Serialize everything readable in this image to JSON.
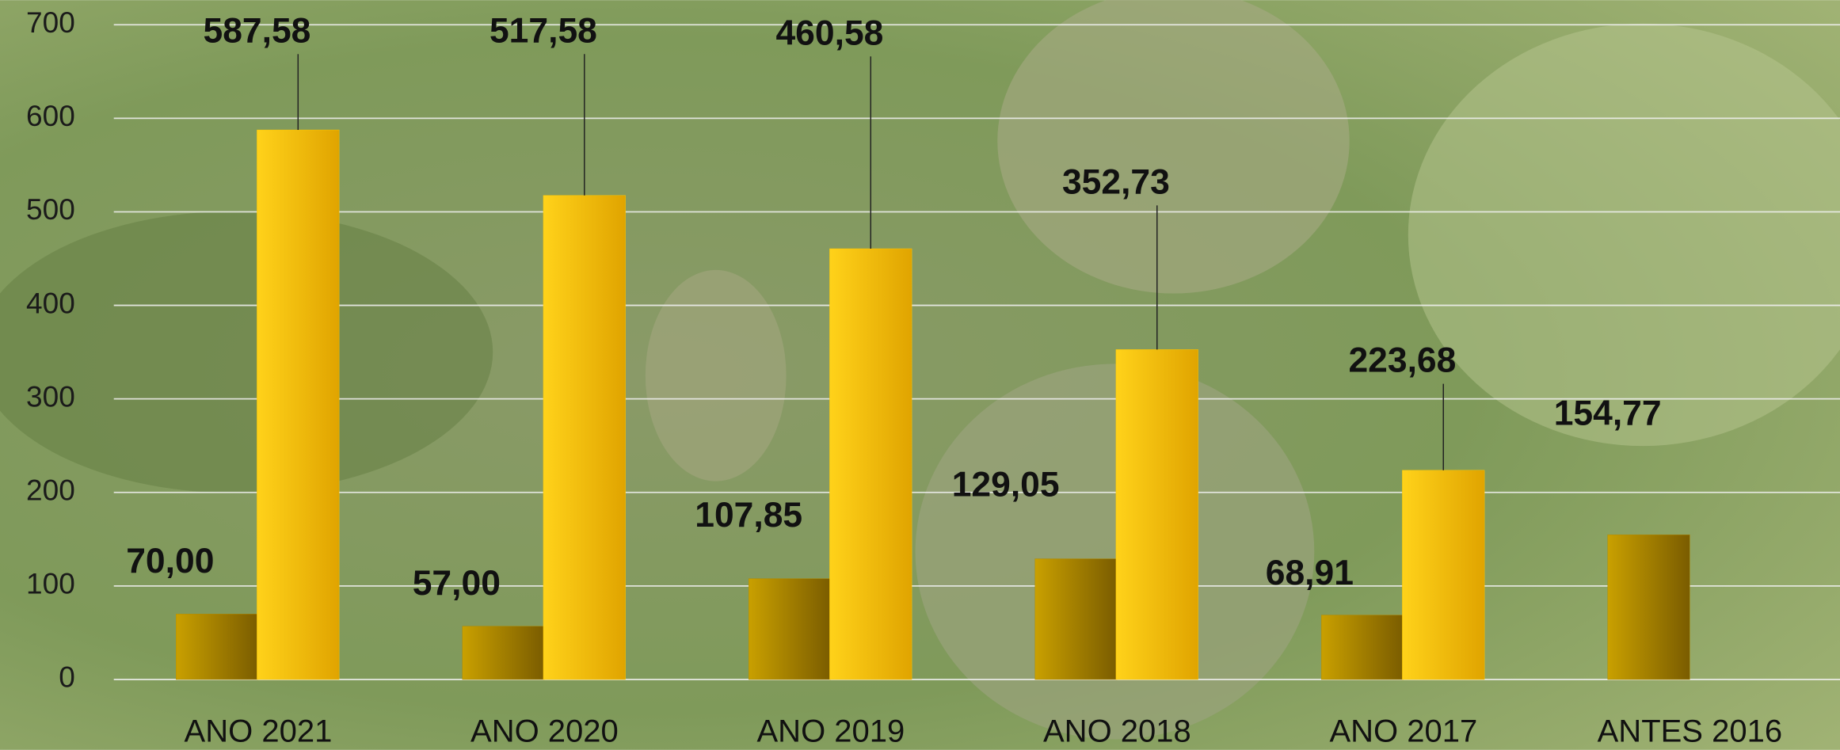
{
  "chart_data": {
    "type": "bar",
    "categories": [
      "ANO 2021",
      "ANO 2020",
      "ANO 2019",
      "ANO 2018",
      "ANO 2017",
      "ANTES 2016"
    ],
    "series": [
      {
        "color": "#b08a00",
        "values": [
          70.0,
          57.0,
          107.85,
          129.05,
          68.91,
          154.77
        ],
        "value_labels": [
          "70,00",
          "57,00",
          "107,85",
          "129,05",
          "68,91",
          "154,77"
        ]
      },
      {
        "color": "#ffc800",
        "values": [
          587.58,
          517.58,
          460.58,
          352.73,
          223.68,
          null
        ],
        "value_labels": [
          "587,58",
          "517,58",
          "460,58",
          "352,73",
          "223,68",
          null
        ]
      }
    ],
    "ylim": [
      0,
      700
    ],
    "yticks": [
      0,
      100,
      200,
      300,
      400,
      500,
      600,
      700
    ],
    "grid": true
  }
}
